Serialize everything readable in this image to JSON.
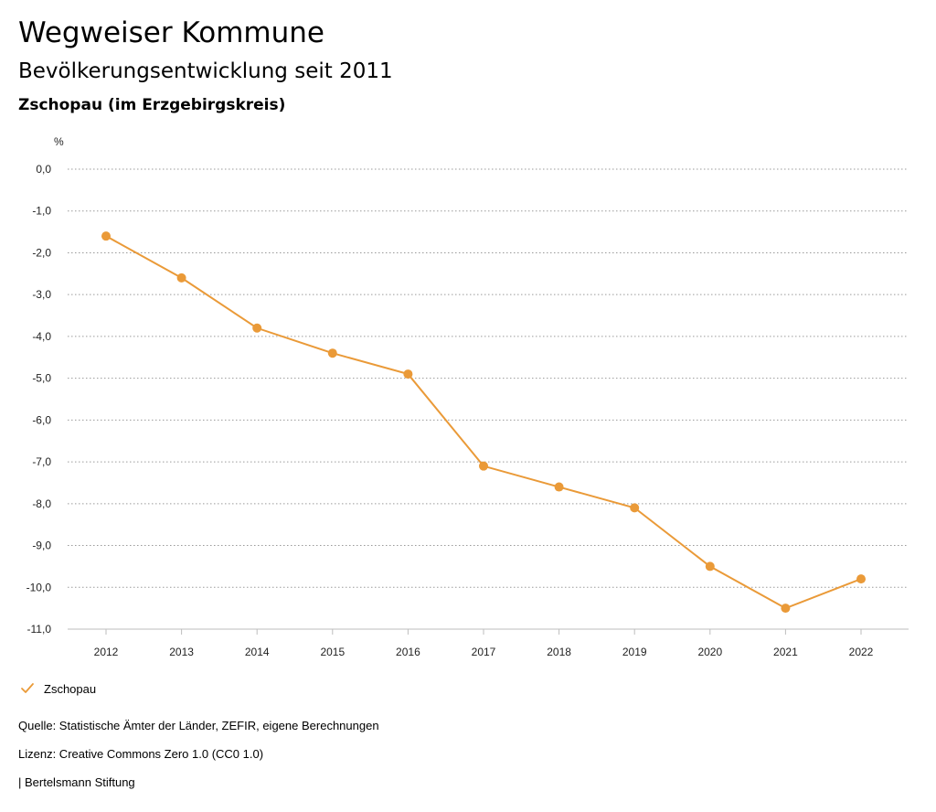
{
  "header": {
    "title": "Wegweiser Kommune",
    "subtitle": "Bevölkerungsentwicklung seit 2011",
    "region": "Zschopau (im Erzgebirgskreis)"
  },
  "chart_data": {
    "type": "line",
    "ylabel": "%",
    "x": [
      "2012",
      "2013",
      "2014",
      "2015",
      "2016",
      "2017",
      "2018",
      "2019",
      "2020",
      "2021",
      "2022"
    ],
    "series": [
      {
        "name": "Zschopau",
        "color": "#ea9a38",
        "values": [
          -1.6,
          -2.6,
          -3.8,
          -4.4,
          -4.9,
          -7.1,
          -7.6,
          -8.1,
          -9.5,
          -10.5,
          -9.8
        ]
      }
    ],
    "ylim": [
      -11,
      0
    ],
    "yticks": [
      0,
      -1,
      -2,
      -3,
      -4,
      -5,
      -6,
      -7,
      -8,
      -9,
      -10,
      -11
    ],
    "ytick_labels": [
      "0,0",
      "-1,0",
      "-2,0",
      "-3,0",
      "-4,0",
      "-5,0",
      "-6,0",
      "-7,0",
      "-8,0",
      "-9,0",
      "-10,0",
      "-11,0"
    ],
    "grid": true,
    "legend_position": "bottom-left"
  },
  "legend": {
    "label": "Zschopau",
    "icon": "checkmark-icon"
  },
  "footer": {
    "source": "Quelle: Statistische Ämter der Länder, ZEFIR, eigene Berechnungen",
    "license": "Lizenz: Creative Commons Zero 1.0 (CC0 1.0)",
    "publisher": "| Bertelsmann Stiftung"
  }
}
